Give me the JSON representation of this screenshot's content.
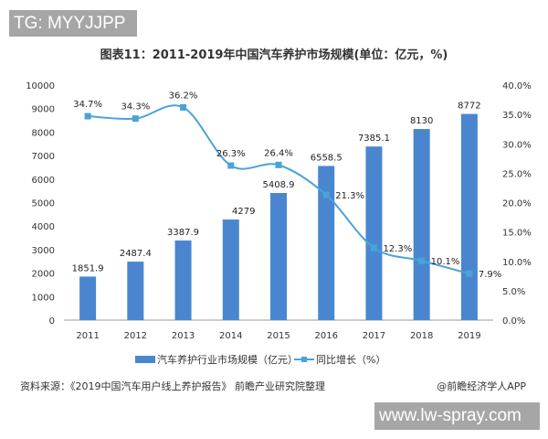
{
  "overlay_tag": "TG: MYYJJPP",
  "watermark_url": "www.lw-spray.com",
  "source": "资料来源：《2019中国汽车用户线上养护报告》 前瞻产业研究院整理",
  "credit": "@前瞻经济学人APP",
  "chart_data": {
    "type": "bar+line",
    "title": "图表11：2011-2019年中国汽车养护市场规模(单位：亿元，%)",
    "categories": [
      "2011",
      "2012",
      "2013",
      "2014",
      "2015",
      "2016",
      "2017",
      "2018",
      "2019"
    ],
    "series": [
      {
        "name": "汽车养护行业市场规模（亿元）",
        "type": "bar",
        "axis": "left",
        "color": "#4a86d0",
        "values": [
          1851.9,
          2487.4,
          3387.9,
          4279,
          5408.9,
          6558.5,
          7385.1,
          8130,
          8772
        ],
        "labels": [
          "1851.9",
          "2487.4",
          "3387.9",
          "4279",
          "5408.9",
          "6558.5",
          "7385.1",
          "8130",
          "8772"
        ]
      },
      {
        "name": "同比增长（%）",
        "type": "line",
        "axis": "right",
        "color": "#4aa3d8",
        "values": [
          34.7,
          34.3,
          36.2,
          26.3,
          26.4,
          21.3,
          12.3,
          10.1,
          7.9
        ],
        "labels": [
          "34.7%",
          "34.3%",
          "36.2%",
          "26.3%",
          "26.4%",
          "21.3%",
          "12.3%",
          "10.1%",
          "7.9%"
        ]
      }
    ],
    "y_left": {
      "range": [
        0,
        10000
      ],
      "ticks": [
        "0",
        "1000",
        "2000",
        "3000",
        "4000",
        "5000",
        "6000",
        "7000",
        "8000",
        "9000",
        "10000"
      ]
    },
    "y_right": {
      "range": [
        0,
        40
      ],
      "ticks": [
        "0.0%",
        "5.0%",
        "10.0%",
        "15.0%",
        "20.0%",
        "25.0%",
        "30.0%",
        "35.0%",
        "40.0%"
      ]
    },
    "grid": false,
    "legend": "bottom"
  }
}
